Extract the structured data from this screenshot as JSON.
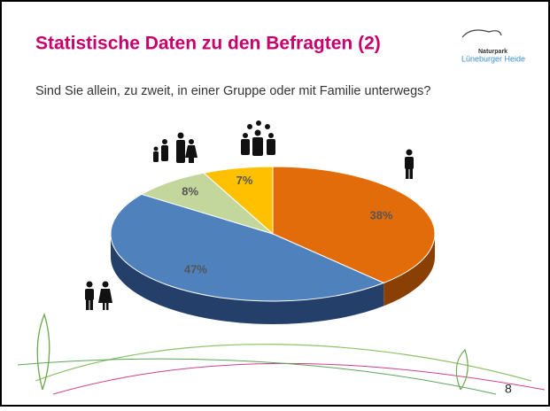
{
  "chart_data": {
    "type": "pie",
    "title": "Statistische Daten zu den Befragten (2)",
    "subtitle": "Sind Sie allein, zu zweit, in einer Gruppe oder mit Familie unterwegs?",
    "categories": [
      null,
      null,
      null,
      null
    ],
    "values": [
      38,
      47,
      8,
      7
    ],
    "value_labels": [
      "38%",
      "47%",
      "8%",
      "7%"
    ],
    "colors": [
      "#e36c0a",
      "#4f81bd",
      "#c3d69b",
      "#ffc000"
    ],
    "side_colors": [
      "#8a3f04",
      "#24406a",
      "#7a8c57",
      "#a37a00"
    ]
  },
  "logo": {
    "line1": "Naturpark",
    "line2": "Lüneburger Heide"
  },
  "page_number": "8"
}
